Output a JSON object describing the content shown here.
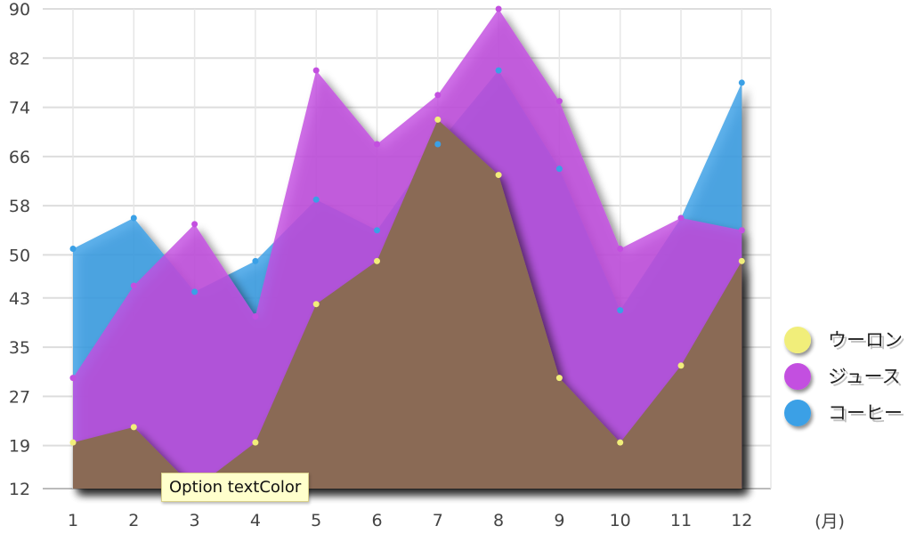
{
  "chart_data": {
    "type": "area",
    "x": [
      1,
      2,
      3,
      4,
      5,
      6,
      7,
      8,
      9,
      10,
      11,
      12
    ],
    "x_unit_label": "(月)",
    "y_ticks": [
      12,
      19,
      27,
      35,
      43,
      50,
      58,
      66,
      74,
      82,
      90
    ],
    "ylim": [
      12,
      90
    ],
    "grid": true,
    "legend_position": "right",
    "series": [
      {
        "name": "コーヒー",
        "color": "#3aa0e6",
        "values": [
          51,
          56,
          44,
          49,
          59,
          54,
          68,
          80,
          64,
          41,
          56,
          78
        ]
      },
      {
        "name": "ジュース",
        "color": "#c34fe0",
        "values": [
          30,
          45,
          55,
          40,
          80,
          68,
          76,
          90,
          75,
          51,
          56,
          54
        ]
      },
      {
        "name": "ウーロン",
        "color": "#f1ee7a",
        "values": [
          19.5,
          22,
          12,
          19.5,
          42,
          49,
          72,
          63,
          30,
          19.5,
          32,
          49
        ]
      }
    ]
  },
  "tooltip": {
    "text": "Option textColor"
  }
}
